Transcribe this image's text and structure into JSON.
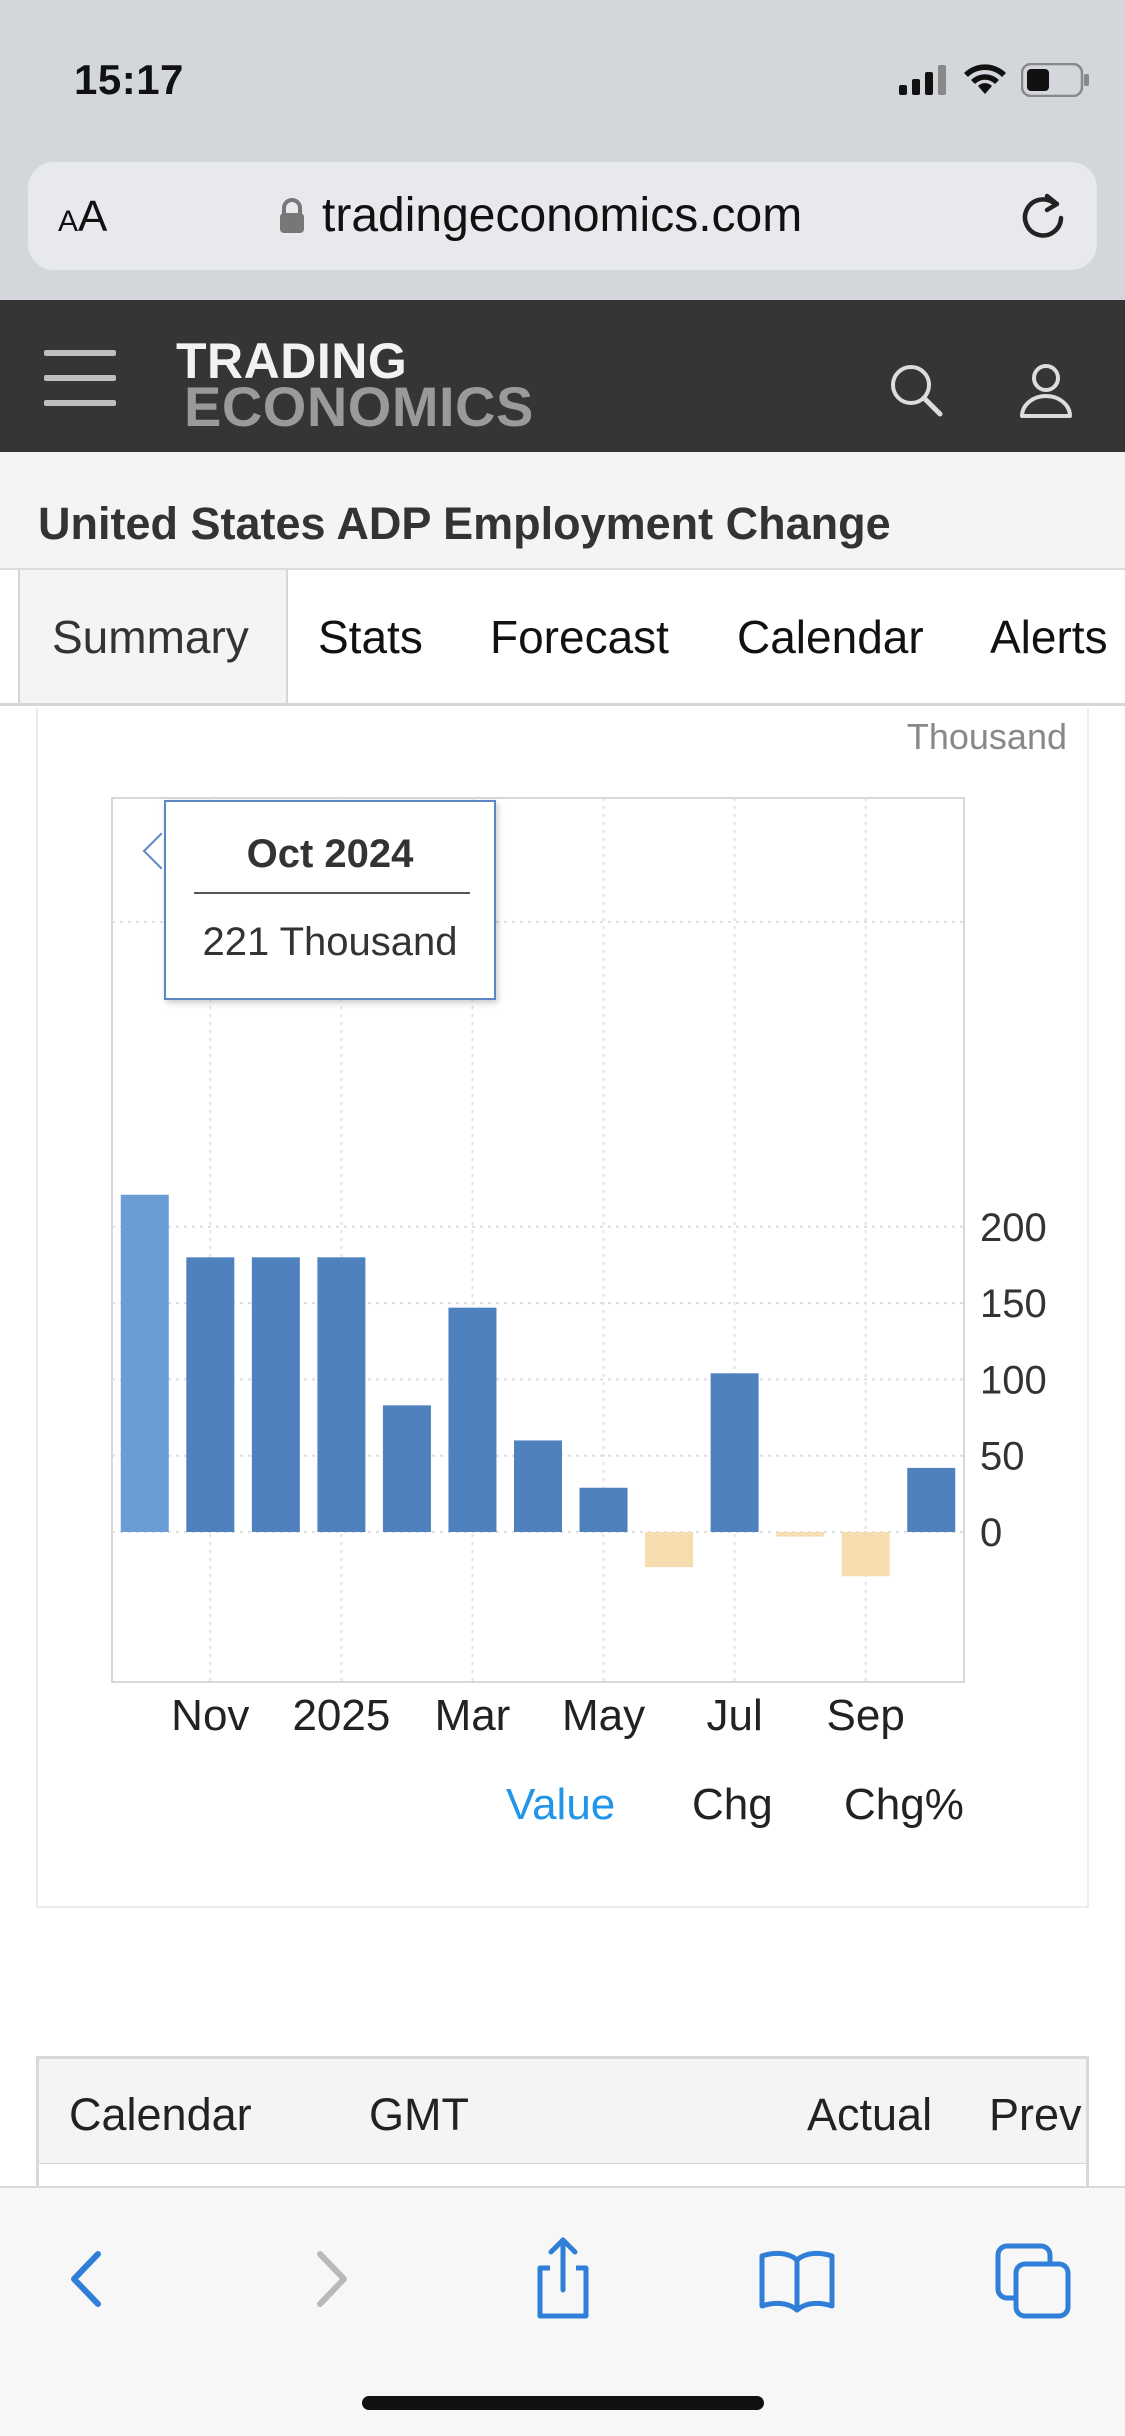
{
  "status_bar": {
    "time": "15:17"
  },
  "browser": {
    "text_size_label_small": "A",
    "text_size_label_large": "A",
    "url": "tradingeconomics.com"
  },
  "site": {
    "logo_line1": "TRADING",
    "logo_line2": "ECONOMICS"
  },
  "page": {
    "title": "United States ADP Employment Change"
  },
  "tabs": [
    {
      "label": "Summary",
      "active": true
    },
    {
      "label": "Stats"
    },
    {
      "label": "Forecast"
    },
    {
      "label": "Calendar"
    },
    {
      "label": "Alerts"
    }
  ],
  "chart_data": {
    "type": "bar",
    "unit": "Thousand",
    "x": [
      "Oct 2024",
      "Nov 2024",
      "Dec 2024",
      "Jan 2025",
      "Feb 2025",
      "Mar 2025",
      "Apr 2025",
      "May 2025",
      "Jun 2025",
      "Jul 2025",
      "Aug 2025",
      "Sep 2025",
      "Oct 2025"
    ],
    "values": [
      221,
      180,
      180,
      180,
      83,
      147,
      60,
      29,
      -23,
      104,
      -3,
      -29,
      42
    ],
    "x_tick_labels": [
      "Nov",
      "2025",
      "Mar",
      "May",
      "Jul",
      "Sep"
    ],
    "y_ticks": [
      0,
      50,
      100,
      150,
      200
    ],
    "ylim": [
      -50,
      240
    ],
    "grid": true,
    "colors": {
      "positive": "#4e81bd",
      "highlighted": "#6a9cd6",
      "negative": "#f5ddb0"
    },
    "tooltip": {
      "title": "Oct 2024",
      "value": "221 Thousand"
    }
  },
  "legend": [
    {
      "label": "Value",
      "active": true,
      "color": "#2196e8"
    },
    {
      "label": "Chg",
      "active": false,
      "color": "#222222"
    },
    {
      "label": "Chg%",
      "active": false,
      "color": "#222222"
    }
  ],
  "calendar_table": {
    "headers": [
      "Calendar",
      "GMT",
      "Actual",
      "Prev"
    ]
  },
  "toolbar": {
    "buttons": [
      "back-icon",
      "forward-icon",
      "share-icon",
      "bookmarks-icon",
      "tabs-icon"
    ]
  }
}
